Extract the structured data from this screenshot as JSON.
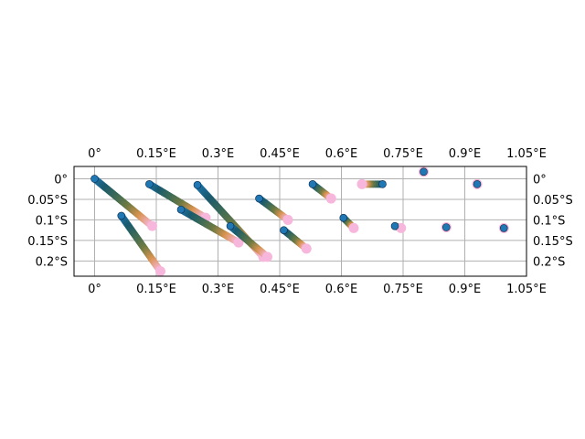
{
  "chart_data": {
    "type": "scatter",
    "projection": "PlateCarree",
    "grid": true,
    "xlim": [
      -0.05,
      1.05
    ],
    "ylim": [
      -0.237,
      0.03
    ],
    "x_ticks": [
      0,
      0.15,
      0.3,
      0.45,
      0.6,
      0.75,
      0.9,
      1.05
    ],
    "x_tick_labels": [
      "0°",
      "0.15°E",
      "0.3°E",
      "0.45°E",
      "0.6°E",
      "0.75°E",
      "0.9°E",
      "1.05°E"
    ],
    "y_ticks": [
      0,
      -0.05,
      -0.1,
      -0.15,
      -0.2
    ],
    "y_tick_labels": [
      "0°",
      "0.05°S",
      "0.1°S",
      "0.15°S",
      "0.2°S"
    ],
    "tick_label_sides": [
      "top",
      "bottom",
      "left",
      "right"
    ],
    "colormap": [
      "#1f77b4",
      "#1a5a6e",
      "#3e6b55",
      "#6f7a42",
      "#d8924e",
      "#f7b7dc"
    ],
    "tracks": [
      {
        "start": [
          0.0,
          0.0
        ],
        "end": [
          0.14,
          -0.115
        ]
      },
      {
        "start": [
          0.065,
          -0.09
        ],
        "end": [
          0.16,
          -0.225
        ]
      },
      {
        "start": [
          0.133,
          -0.013
        ],
        "end": [
          0.27,
          -0.095
        ]
      },
      {
        "start": [
          0.21,
          -0.075
        ],
        "end": [
          0.35,
          -0.155
        ]
      },
      {
        "start": [
          0.25,
          -0.015
        ],
        "end": [
          0.41,
          -0.19
        ]
      },
      {
        "start": [
          0.33,
          -0.115
        ],
        "end": [
          0.42,
          -0.19
        ]
      },
      {
        "start": [
          0.4,
          -0.048
        ],
        "end": [
          0.47,
          -0.1
        ]
      },
      {
        "start": [
          0.46,
          -0.125
        ],
        "end": [
          0.515,
          -0.17
        ]
      },
      {
        "start": [
          0.53,
          -0.013
        ],
        "end": [
          0.575,
          -0.048
        ]
      },
      {
        "start": [
          0.605,
          -0.095
        ],
        "end": [
          0.63,
          -0.12
        ]
      },
      {
        "start": [
          0.7,
          -0.013
        ],
        "end": [
          0.65,
          -0.013
        ]
      },
      {
        "start": [
          0.73,
          -0.115
        ],
        "end": [
          0.745,
          -0.12
        ]
      },
      {
        "start": [
          0.8,
          0.017
        ],
        "end": [
          0.8,
          0.017
        ]
      },
      {
        "start": [
          0.93,
          -0.013
        ],
        "end": [
          0.93,
          -0.013
        ]
      },
      {
        "start": [
          0.855,
          -0.118
        ],
        "end": [
          0.855,
          -0.118
        ]
      },
      {
        "start": [
          0.995,
          -0.12
        ],
        "end": [
          0.995,
          -0.12
        ]
      }
    ]
  }
}
